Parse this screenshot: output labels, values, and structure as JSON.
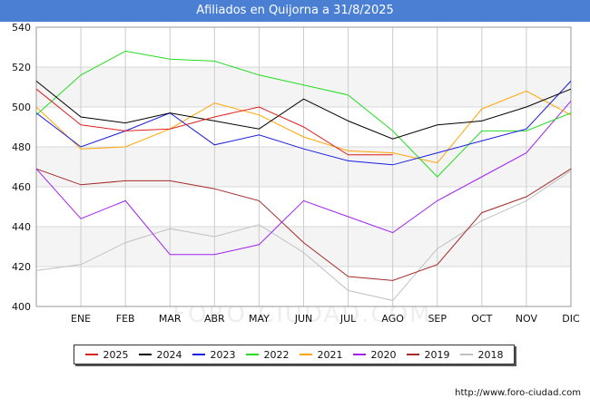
{
  "chart_data": {
    "type": "line",
    "title": "Afiliados en Quijorna a 31/8/2025",
    "categories": [
      "",
      "ENE",
      "FEB",
      "MAR",
      "ABR",
      "MAY",
      "JUN",
      "JUL",
      "AGO",
      "SEP",
      "OCT",
      "NOV",
      "DIC"
    ],
    "ylim": [
      400,
      540
    ],
    "yticks": [
      400,
      420,
      440,
      460,
      480,
      500,
      520,
      540
    ],
    "grid": true,
    "legend_position": "bottom",
    "series": [
      {
        "name": "2025",
        "color": "#dd2020",
        "values": [
          509,
          491,
          488,
          489,
          495,
          500,
          490,
          476,
          476,
          null,
          null,
          null,
          null
        ]
      },
      {
        "name": "2024",
        "color": "#000000",
        "values": [
          513,
          495,
          492,
          497,
          493,
          489,
          504,
          493,
          484,
          491,
          493,
          500,
          509
        ]
      },
      {
        "name": "2023",
        "color": "#1a1ae0",
        "values": [
          497,
          480,
          488,
          497,
          481,
          486,
          479,
          473,
          471,
          477,
          483,
          489,
          513
        ]
      },
      {
        "name": "2022",
        "color": "#22dd22",
        "values": [
          496,
          516,
          528,
          524,
          523,
          516,
          511,
          506,
          488,
          465,
          488,
          488,
          497
        ]
      },
      {
        "name": "2021",
        "color": "#ffa500",
        "values": [
          500,
          479,
          480,
          489,
          502,
          496,
          485,
          478,
          477,
          472,
          499,
          508,
          496
        ]
      },
      {
        "name": "2020",
        "color": "#a020f0",
        "values": [
          469,
          444,
          453,
          426,
          426,
          431,
          453,
          445,
          437,
          453,
          465,
          477,
          503
        ]
      },
      {
        "name": "2019",
        "color": "#a52a2a",
        "values": [
          469,
          461,
          463,
          463,
          459,
          453,
          432,
          415,
          413,
          421,
          447,
          455,
          469
        ]
      },
      {
        "name": "2018",
        "color": "#c0c0c0",
        "values": [
          418,
          421,
          432,
          439,
          435,
          441,
          427,
          408,
          403,
          429,
          443,
          453,
          468
        ]
      }
    ]
  },
  "watermark": "FORO-CIUDAD.COM",
  "footer": {
    "url": "http://www.foro-ciudad.com"
  }
}
